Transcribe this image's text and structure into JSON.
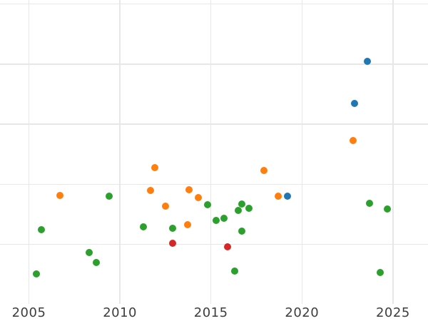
{
  "chart_data": {
    "type": "scatter",
    "title": "",
    "xlabel": "",
    "ylabel": "",
    "grid": true,
    "legend": "none",
    "x_axis": {
      "ticks": [
        "2005",
        "2010",
        "2015",
        "2020",
        "2025"
      ],
      "tick_values": [
        2005,
        2010,
        2015,
        2020,
        2025
      ],
      "range": [
        2003.4,
        2026.9
      ]
    },
    "y_axis": {
      "gridline_values": [
        1,
        2,
        3,
        4,
        5
      ],
      "range": [
        0,
        5.06
      ],
      "tick_labels_visible": false
    },
    "series": [
      {
        "name": "blue",
        "color": "#1f77b4",
        "points": [
          {
            "x": 2023.6,
            "y": 4.04
          },
          {
            "x": 2022.9,
            "y": 3.35
          },
          {
            "x": 2019.2,
            "y": 1.8
          }
        ]
      },
      {
        "name": "orange",
        "color": "#ff7f0e",
        "points": [
          {
            "x": 2006.7,
            "y": 1.81
          },
          {
            "x": 2011.7,
            "y": 1.9
          },
          {
            "x": 2011.9,
            "y": 2.28
          },
          {
            "x": 2012.5,
            "y": 1.64
          },
          {
            "x": 2013.7,
            "y": 1.33
          },
          {
            "x": 2013.8,
            "y": 1.91
          },
          {
            "x": 2014.3,
            "y": 1.78
          },
          {
            "x": 2017.9,
            "y": 2.23
          },
          {
            "x": 2018.7,
            "y": 1.8
          },
          {
            "x": 2022.8,
            "y": 2.73
          }
        ]
      },
      {
        "name": "red",
        "color": "#d62728",
        "points": [
          {
            "x": 2012.9,
            "y": 1.02
          },
          {
            "x": 2015.9,
            "y": 0.96
          }
        ]
      },
      {
        "name": "green",
        "color": "#2ca02c",
        "points": [
          {
            "x": 2005.4,
            "y": 0.51
          },
          {
            "x": 2005.7,
            "y": 1.25
          },
          {
            "x": 2008.3,
            "y": 0.87
          },
          {
            "x": 2008.7,
            "y": 0.7
          },
          {
            "x": 2009.4,
            "y": 1.8
          },
          {
            "x": 2011.3,
            "y": 1.29
          },
          {
            "x": 2012.9,
            "y": 1.27
          },
          {
            "x": 2014.8,
            "y": 1.66
          },
          {
            "x": 2015.3,
            "y": 1.4
          },
          {
            "x": 2015.7,
            "y": 1.44
          },
          {
            "x": 2016.5,
            "y": 1.57
          },
          {
            "x": 2016.7,
            "y": 1.67
          },
          {
            "x": 2017.1,
            "y": 1.6
          },
          {
            "x": 2016.7,
            "y": 1.22
          },
          {
            "x": 2016.3,
            "y": 0.56
          },
          {
            "x": 2023.7,
            "y": 1.68
          },
          {
            "x": 2024.7,
            "y": 1.59
          },
          {
            "x": 2024.3,
            "y": 0.53
          }
        ]
      }
    ],
    "style": {
      "background_color": "#ffffff",
      "gridline_color": "#e7e7e7",
      "tick_label_color": "#3d3d3d"
    }
  }
}
